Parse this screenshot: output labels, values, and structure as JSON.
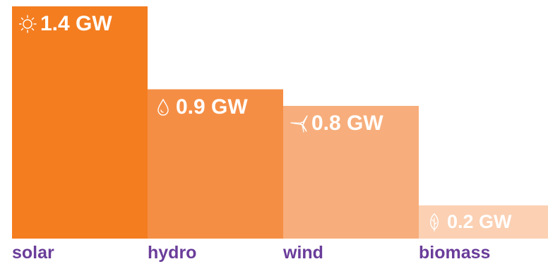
{
  "chart_data": {
    "type": "bar",
    "categories": [
      "solar",
      "hydro",
      "wind",
      "biomass"
    ],
    "values": [
      1.4,
      0.9,
      0.8,
      0.2
    ],
    "unit": "GW",
    "value_labels": [
      "1.4 GW",
      "0.9 GW",
      "0.8 GW",
      "0.2 GW"
    ],
    "icons": [
      "sun-icon",
      "water-drop-icon",
      "wind-turbine-icon",
      "leaf-icon"
    ],
    "ylim": [
      0,
      1.4
    ],
    "grid": false,
    "legend": "none",
    "title": "",
    "xlabel": "",
    "ylabel": ""
  },
  "colors": {
    "bars": [
      "#f47d20",
      "#f58e45",
      "#f7ae7c",
      "#fbd0b3"
    ],
    "category_label": "#6a3d9a",
    "value_label": "#ffffff"
  }
}
